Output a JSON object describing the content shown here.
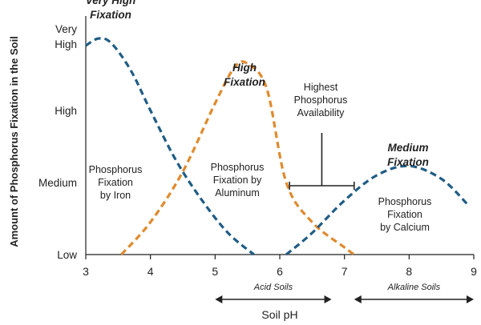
{
  "chart_data": {
    "type": "line",
    "title": "",
    "xlabel": "Soil pH",
    "ylabel": "Amount of Phosphorus Fixation in the Soil",
    "xlim": [
      3,
      9
    ],
    "x_ticks": [
      "3",
      "4",
      "5",
      "6",
      "7",
      "8",
      "9"
    ],
    "y_levels": [
      "Low",
      "Medium",
      "High",
      "Very High"
    ],
    "ylim": [
      0,
      3
    ],
    "grid": false,
    "colors": {
      "iron": "#1f5c85",
      "aluminum": "#e08a2c",
      "calcium": "#1f5c85",
      "axis": "#222222"
    },
    "series": [
      {
        "name": "Phosphorus Fixation by Iron",
        "x": [
          3.0,
          3.2,
          3.4,
          3.7,
          4.0,
          4.4,
          4.8,
          5.2,
          5.6
        ],
        "y": [
          2.9,
          3.0,
          2.93,
          2.55,
          2.0,
          1.3,
          0.75,
          0.3,
          0.0
        ]
      },
      {
        "name": "Phosphorus Fixation by Aluminum",
        "x": [
          3.55,
          4.0,
          4.5,
          5.0,
          5.3,
          5.5,
          5.8,
          6.1,
          6.5,
          7.0,
          7.15
        ],
        "y": [
          0.0,
          0.45,
          1.15,
          2.1,
          2.6,
          2.65,
          2.3,
          1.0,
          0.45,
          0.1,
          0.0
        ]
      },
      {
        "name": "Phosphorus Fixation by Calcium",
        "x": [
          6.1,
          6.5,
          7.0,
          7.5,
          8.0,
          8.5,
          8.9
        ],
        "y": [
          0.0,
          0.3,
          0.75,
          1.1,
          1.23,
          1.05,
          0.7
        ]
      }
    ],
    "annotations": {
      "very_high": [
        "Very High",
        "Fixation"
      ],
      "high": [
        "High",
        "Fixation"
      ],
      "medium": [
        "Medium",
        "Fixation"
      ],
      "iron_label": [
        "Phosphorus",
        "Fixation",
        "by Iron"
      ],
      "aluminum_label": [
        "Phosphorus",
        "Fixation by",
        "Aluminum"
      ],
      "calcium_label": [
        "Phosphorus",
        "Fixation",
        "by Calcium"
      ],
      "availability": [
        "Highest",
        "Phosphorus",
        "Availability"
      ],
      "availability_range": [
        6.15,
        7.15
      ],
      "acid_soils": {
        "text": "Acid Soils",
        "range": [
          5.0,
          6.8
        ]
      },
      "alkaline_soils": {
        "text": "Alkaline Soils",
        "range": [
          7.15,
          9.0
        ]
      }
    }
  }
}
